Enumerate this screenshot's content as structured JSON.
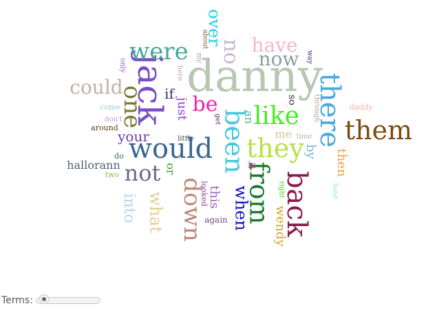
{
  "terms_label": "Terms:",
  "slider_level": 0.05,
  "words": [
    {
      "text": "danny",
      "color": "#b8c8b0"
    },
    {
      "text": "jack",
      "color": "#7b4dc2"
    },
    {
      "text": "would",
      "color": "#3a6690"
    },
    {
      "text": "them",
      "color": "#7a4a10"
    },
    {
      "text": "they",
      "color": "#b8e04a"
    },
    {
      "text": "back",
      "color": "#8a1a4a"
    },
    {
      "text": "there",
      "color": "#4aa8e0"
    },
    {
      "text": "from",
      "color": "#1a7a2a"
    },
    {
      "text": "like",
      "color": "#44ee22"
    },
    {
      "text": "been",
      "color": "#44c8e0"
    },
    {
      "text": "were",
      "color": "#46a89a"
    },
    {
      "text": "one",
      "color": "#7a7a30"
    },
    {
      "text": "down",
      "color": "#c08878"
    },
    {
      "text": "not",
      "color": "#6a6a88"
    },
    {
      "text": "could",
      "color": "#c4b0a4"
    },
    {
      "text": "have",
      "color": "#f4b8c4"
    },
    {
      "text": "now",
      "color": "#8aa0a0"
    },
    {
      "text": "no",
      "color": "#c8b8d0"
    },
    {
      "text": "over",
      "color": "#22ccee"
    },
    {
      "text": "be",
      "color": "#ee22aa"
    },
    {
      "text": "when",
      "color": "#1010cc"
    },
    {
      "text": "what",
      "color": "#e4cc90"
    },
    {
      "text": "into",
      "color": "#b8d4e4"
    },
    {
      "text": "wendy",
      "color": "#d4a020"
    },
    {
      "text": "then",
      "color": "#f0a040"
    },
    {
      "text": "your",
      "color": "#6a3aa8"
    },
    {
      "text": "if",
      "color": "#303060"
    },
    {
      "text": "just",
      "color": "#8a3aee"
    },
    {
      "text": "this",
      "color": "#a060c0"
    },
    {
      "text": "hallorann",
      "color": "#506070"
    },
    {
      "text": "by",
      "color": "#7ab0d8"
    },
    {
      "text": "an",
      "color": "#5ab0a0"
    },
    {
      "text": "or",
      "color": "#4a9a2a"
    },
    {
      "text": "so",
      "color": "#2a2a2a"
    },
    {
      "text": "me",
      "color": "#d4c890"
    },
    {
      "text": "is",
      "color": "#cc2080"
    },
    {
      "text": "daddy",
      "color": "#f4b0a0"
    },
    {
      "text": "around",
      "color": "#5a3a10"
    },
    {
      "text": "come",
      "color": "#a0c8d0"
    },
    {
      "text": "don't",
      "color": "#b8a0c8"
    },
    {
      "text": "little",
      "color": "#404040"
    },
    {
      "text": "do",
      "color": "#2a6a60"
    },
    {
      "text": "two",
      "color": "#7ac040"
    },
    {
      "text": "again",
      "color": "#6a4a80"
    },
    {
      "text": "looked",
      "color": "#8a4aa0"
    },
    {
      "text": "get",
      "color": "#5a2a5a"
    },
    {
      "text": "right",
      "color": "#44cc22"
    },
    {
      "text": "time",
      "color": "#c0a8a0"
    },
    {
      "text": "through",
      "color": "#b0a090"
    },
    {
      "text": "hand",
      "color": "#88ddee"
    },
    {
      "text": "way",
      "color": "#2a2a7a"
    },
    {
      "text": "about",
      "color": "#7a6030"
    },
    {
      "text": "my",
      "color": "#a0a0a0"
    },
    {
      "text": "here",
      "color": "#b0a0b0"
    },
    {
      "text": "only",
      "color": "#a050c0"
    }
  ]
}
